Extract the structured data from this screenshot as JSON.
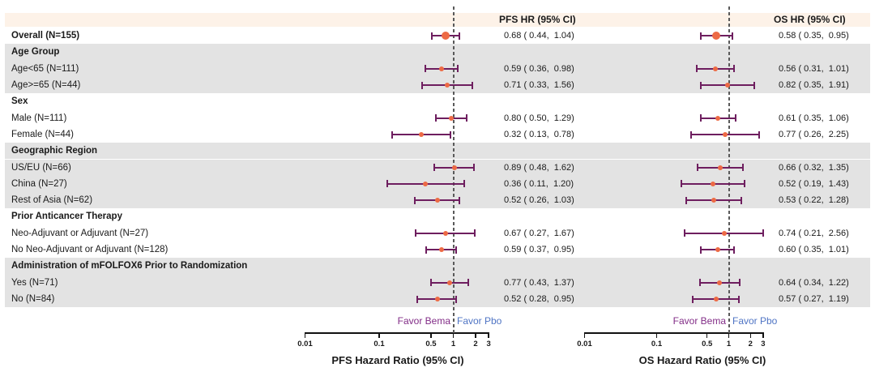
{
  "chart_data": {
    "type": "forest",
    "title": "",
    "columns": {
      "pfs_header": "PFS HR (95% CI)",
      "os_header": "OS HR (95% CI)"
    },
    "axes": {
      "scale": "log10",
      "xlim": [
        0.01,
        3
      ],
      "ticks": [
        0.01,
        0.1,
        0.5,
        1,
        2,
        3
      ],
      "reference_line": 1,
      "pfs_title": "PFS Hazard Ratio (95% CI)",
      "os_title": "OS Hazard Ratio (95% CI)",
      "favor_left": "Favor Bema",
      "favor_right": "Favor Pbo"
    },
    "colors": {
      "point": "#ed6a45",
      "error_bar": "#6e1e5f",
      "favor_bema_text": "#822d87",
      "favor_pbo_text": "#4f74c4",
      "shaded_band": "#e3e3e3",
      "header_band": "#fdf2e8",
      "reference_line": "#595959"
    },
    "rows": [
      {
        "label": "Overall (N=155)",
        "bold": true,
        "shaded": false,
        "big_marker": true,
        "pfs": {
          "hr": 0.68,
          "lo": 0.44,
          "hi": 1.04,
          "text": "0.68 ( 0.44,  1.04)"
        },
        "os": {
          "hr": 0.58,
          "lo": 0.35,
          "hi": 0.95,
          "text": "0.58 ( 0.35,  0.95)"
        }
      },
      {
        "label": "Age Group",
        "bold": true,
        "shaded": true,
        "header": true
      },
      {
        "label": "Age<65 (N=111)",
        "bold": false,
        "shaded": true,
        "pfs": {
          "hr": 0.59,
          "lo": 0.36,
          "hi": 0.98,
          "text": "0.59 ( 0.36,  0.98)"
        },
        "os": {
          "hr": 0.56,
          "lo": 0.31,
          "hi": 1.01,
          "text": "0.56 ( 0.31,  1.01)"
        }
      },
      {
        "label": "Age>=65 (N=44)",
        "bold": false,
        "shaded": true,
        "pfs": {
          "hr": 0.71,
          "lo": 0.33,
          "hi": 1.56,
          "text": "0.71 ( 0.33,  1.56)"
        },
        "os": {
          "hr": 0.82,
          "lo": 0.35,
          "hi": 1.91,
          "text": "0.82 ( 0.35,  1.91)"
        }
      },
      {
        "label": "Sex",
        "bold": true,
        "shaded": false,
        "header": true
      },
      {
        "label": "Male (N=111)",
        "bold": false,
        "shaded": false,
        "pfs": {
          "hr": 0.8,
          "lo": 0.5,
          "hi": 1.29,
          "text": "0.80 ( 0.50,  1.29)"
        },
        "os": {
          "hr": 0.61,
          "lo": 0.35,
          "hi": 1.06,
          "text": "0.61 ( 0.35,  1.06)"
        }
      },
      {
        "label": "Female (N=44)",
        "bold": false,
        "shaded": false,
        "pfs": {
          "hr": 0.32,
          "lo": 0.13,
          "hi": 0.78,
          "text": "0.32 ( 0.13,  0.78)"
        },
        "os": {
          "hr": 0.77,
          "lo": 0.26,
          "hi": 2.25,
          "text": "0.77 ( 0.26,  2.25)"
        }
      },
      {
        "label": "Geographic Region",
        "bold": true,
        "shaded": true,
        "header": true
      },
      {
        "label": "US/EU (N=66)",
        "bold": false,
        "shaded": true,
        "pfs": {
          "hr": 0.89,
          "lo": 0.48,
          "hi": 1.62,
          "text": "0.89 ( 0.48,  1.62)"
        },
        "os": {
          "hr": 0.66,
          "lo": 0.32,
          "hi": 1.35,
          "text": "0.66 ( 0.32,  1.35)"
        }
      },
      {
        "label": "China (N=27)",
        "bold": false,
        "shaded": true,
        "pfs": {
          "hr": 0.36,
          "lo": 0.11,
          "hi": 1.2,
          "text": "0.36 ( 0.11,  1.20)"
        },
        "os": {
          "hr": 0.52,
          "lo": 0.19,
          "hi": 1.43,
          "text": "0.52 ( 0.19,  1.43)"
        }
      },
      {
        "label": "Rest of Asia (N=62)",
        "bold": false,
        "shaded": true,
        "pfs": {
          "hr": 0.52,
          "lo": 0.26,
          "hi": 1.03,
          "text": "0.52 ( 0.26,  1.03)"
        },
        "os": {
          "hr": 0.53,
          "lo": 0.22,
          "hi": 1.28,
          "text": "0.53 ( 0.22,  1.28)"
        }
      },
      {
        "label": "Prior Anticancer Therapy",
        "bold": true,
        "shaded": false,
        "header": true
      },
      {
        "label": "Neo-Adjuvant or Adjuvant (N=27)",
        "bold": false,
        "shaded": false,
        "pfs": {
          "hr": 0.67,
          "lo": 0.27,
          "hi": 1.67,
          "text": "0.67 ( 0.27,  1.67)"
        },
        "os": {
          "hr": 0.74,
          "lo": 0.21,
          "hi": 2.56,
          "text": "0.74 ( 0.21,  2.56)"
        }
      },
      {
        "label": "No Neo-Adjuvant or Adjuvant (N=128)",
        "bold": false,
        "shaded": false,
        "pfs": {
          "hr": 0.59,
          "lo": 0.37,
          "hi": 0.95,
          "text": "0.59 ( 0.37,  0.95)"
        },
        "os": {
          "hr": 0.6,
          "lo": 0.35,
          "hi": 1.01,
          "text": "0.60 ( 0.35,  1.01)"
        }
      },
      {
        "label": "Administration of mFOLFOX6 Prior to Randomization",
        "bold": true,
        "shaded": true,
        "header": true
      },
      {
        "label": "Yes (N=71)",
        "bold": false,
        "shaded": true,
        "pfs": {
          "hr": 0.77,
          "lo": 0.43,
          "hi": 1.37,
          "text": "0.77 ( 0.43,  1.37)"
        },
        "os": {
          "hr": 0.64,
          "lo": 0.34,
          "hi": 1.22,
          "text": "0.64 ( 0.34,  1.22)"
        }
      },
      {
        "label": "No (N=84)",
        "bold": false,
        "shaded": true,
        "pfs": {
          "hr": 0.52,
          "lo": 0.28,
          "hi": 0.95,
          "text": "0.52 ( 0.28,  0.95)"
        },
        "os": {
          "hr": 0.57,
          "lo": 0.27,
          "hi": 1.19,
          "text": "0.57 ( 0.27,  1.19)"
        }
      }
    ]
  }
}
